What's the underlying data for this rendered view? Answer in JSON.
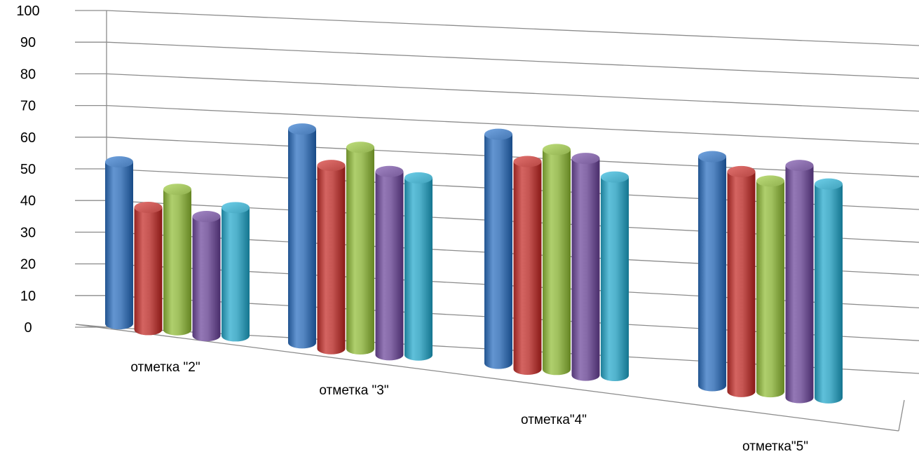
{
  "chart_data": {
    "type": "bar",
    "title": "",
    "xlabel": "",
    "ylabel": "",
    "ylim": [
      0,
      100
    ],
    "yticks": [
      0,
      10,
      20,
      30,
      40,
      50,
      60,
      70,
      80,
      90,
      100
    ],
    "grid": true,
    "style": "3d-cylinder",
    "categories": [
      "отметка \"2\"",
      "отметка \"3\"",
      "отметка\"4\"",
      "отметка\"5\""
    ],
    "series": [
      {
        "color": "#4f81bd",
        "values": [
          53,
          70,
          75,
          75
        ]
      },
      {
        "color": "#c0504d",
        "values": [
          40,
          60,
          68,
          72
        ]
      },
      {
        "color": "#9bbb59",
        "values": [
          46,
          66,
          72,
          69
        ]
      },
      {
        "color": "#8064a2",
        "values": [
          39,
          60,
          71,
          76
        ]
      },
      {
        "color": "#4bacc6",
        "values": [
          42,
          58,
          65,
          70
        ]
      }
    ]
  }
}
